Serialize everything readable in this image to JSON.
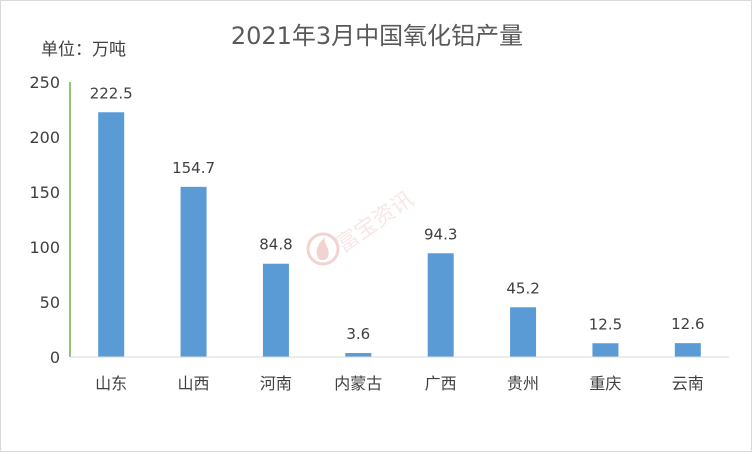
{
  "chart_data": {
    "type": "bar",
    "title": "2021年3月中国氧化铝产量",
    "unit_label": "单位：万吨",
    "categories": [
      "山东",
      "山西",
      "河南",
      "内蒙古",
      "广西",
      "贵州",
      "重庆",
      "云南"
    ],
    "values": [
      222.5,
      154.7,
      84.8,
      3.6,
      94.3,
      45.2,
      12.5,
      12.6
    ],
    "data_labels": [
      "222.5",
      "154.7",
      "84.8",
      "3.6",
      "94.3",
      "45.2",
      "12.5",
      "12.6"
    ],
    "ylim": [
      0,
      250
    ],
    "yticks": [
      0,
      50,
      100,
      150,
      200,
      250
    ],
    "grid": false,
    "legend": false,
    "bar_color": "#5b9bd5",
    "axis_color": "#70ad47"
  },
  "watermark": {
    "text": "富宝资讯",
    "color": "#e8b9b5",
    "icon": "flame-logo-icon"
  }
}
